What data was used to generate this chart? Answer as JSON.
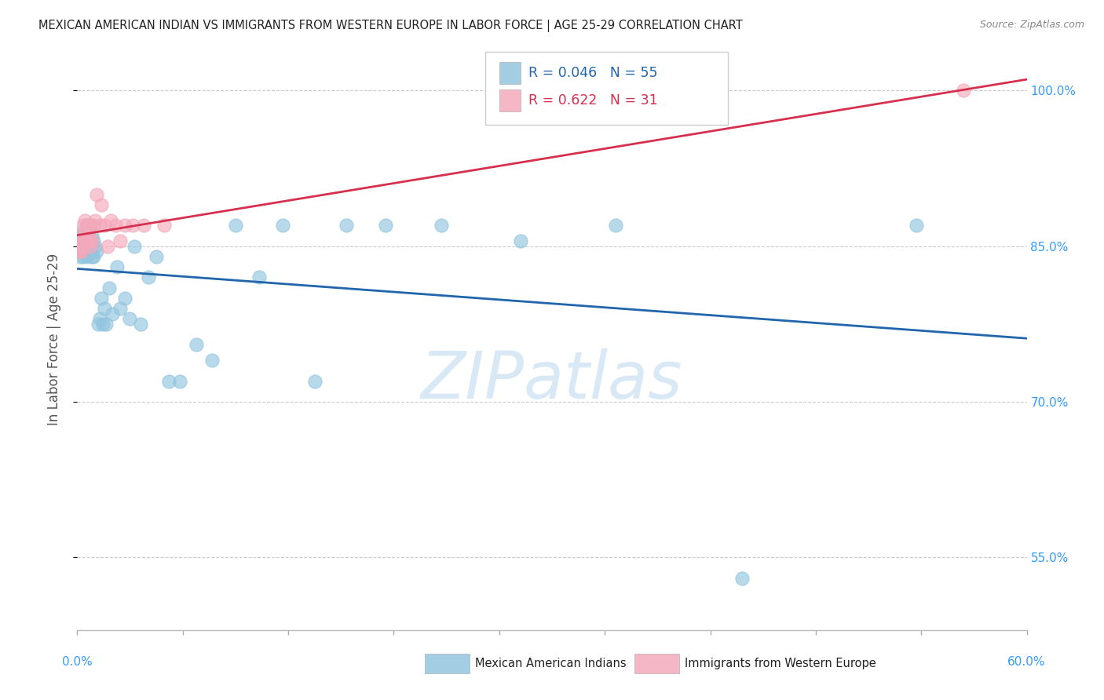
{
  "title": "MEXICAN AMERICAN INDIAN VS IMMIGRANTS FROM WESTERN EUROPE IN LABOR FORCE | AGE 25-29 CORRELATION CHART",
  "source": "Source: ZipAtlas.com",
  "ylabel": "In Labor Force | Age 25-29",
  "xlim": [
    0.0,
    0.6
  ],
  "ylim": [
    0.48,
    1.04
  ],
  "yticks": [
    0.55,
    0.7,
    0.85,
    1.0
  ],
  "ytick_labels": [
    "55.0%",
    "70.0%",
    "85.0%",
    "100.0%"
  ],
  "blue_R": 0.046,
  "blue_N": 55,
  "pink_R": 0.622,
  "pink_N": 31,
  "blue_color": "#92c5de",
  "pink_color": "#f4a9bb",
  "blue_line_color": "#2166ac",
  "pink_line_color": "#d6304e",
  "legend_label_blue": "Mexican American Indians",
  "legend_label_pink": "Immigrants from Western Europe",
  "blue_points_x": [
    0.001,
    0.002,
    0.002,
    0.003,
    0.003,
    0.003,
    0.004,
    0.004,
    0.004,
    0.005,
    0.005,
    0.006,
    0.006,
    0.007,
    0.007,
    0.007,
    0.008,
    0.008,
    0.009,
    0.009,
    0.01,
    0.01,
    0.011,
    0.012,
    0.013,
    0.014,
    0.015,
    0.016,
    0.017,
    0.018,
    0.02,
    0.022,
    0.025,
    0.027,
    0.03,
    0.033,
    0.036,
    0.04,
    0.045,
    0.05,
    0.058,
    0.065,
    0.075,
    0.085,
    0.1,
    0.115,
    0.13,
    0.15,
    0.17,
    0.195,
    0.23,
    0.28,
    0.34,
    0.42,
    0.53
  ],
  "blue_points_y": [
    0.845,
    0.84,
    0.855,
    0.845,
    0.85,
    0.86,
    0.84,
    0.855,
    0.865,
    0.845,
    0.855,
    0.84,
    0.87,
    0.85,
    0.86,
    0.87,
    0.845,
    0.855,
    0.84,
    0.86,
    0.855,
    0.84,
    0.85,
    0.845,
    0.775,
    0.78,
    0.8,
    0.775,
    0.79,
    0.775,
    0.81,
    0.785,
    0.83,
    0.79,
    0.8,
    0.78,
    0.85,
    0.775,
    0.82,
    0.84,
    0.72,
    0.72,
    0.755,
    0.74,
    0.87,
    0.82,
    0.87,
    0.72,
    0.87,
    0.87,
    0.87,
    0.855,
    0.87,
    0.53,
    0.87
  ],
  "pink_points_x": [
    0.001,
    0.002,
    0.002,
    0.003,
    0.003,
    0.004,
    0.004,
    0.005,
    0.005,
    0.006,
    0.006,
    0.007,
    0.007,
    0.008,
    0.008,
    0.009,
    0.01,
    0.011,
    0.012,
    0.014,
    0.015,
    0.017,
    0.019,
    0.021,
    0.024,
    0.027,
    0.03,
    0.035,
    0.042,
    0.055,
    0.56
  ],
  "pink_points_y": [
    0.845,
    0.845,
    0.855,
    0.845,
    0.86,
    0.85,
    0.87,
    0.855,
    0.875,
    0.855,
    0.87,
    0.855,
    0.86,
    0.85,
    0.87,
    0.855,
    0.87,
    0.875,
    0.9,
    0.87,
    0.89,
    0.87,
    0.85,
    0.875,
    0.87,
    0.855,
    0.87,
    0.87,
    0.87,
    0.87,
    1.0
  ],
  "watermark_text": "ZIPatlas",
  "watermark_color": "#c8dff0",
  "grid_color": "#cccccc",
  "bg_color": "#ffffff",
  "title_color": "#222222",
  "source_color": "#888888",
  "ylabel_color": "#555555",
  "tick_label_color": "#3399ff"
}
